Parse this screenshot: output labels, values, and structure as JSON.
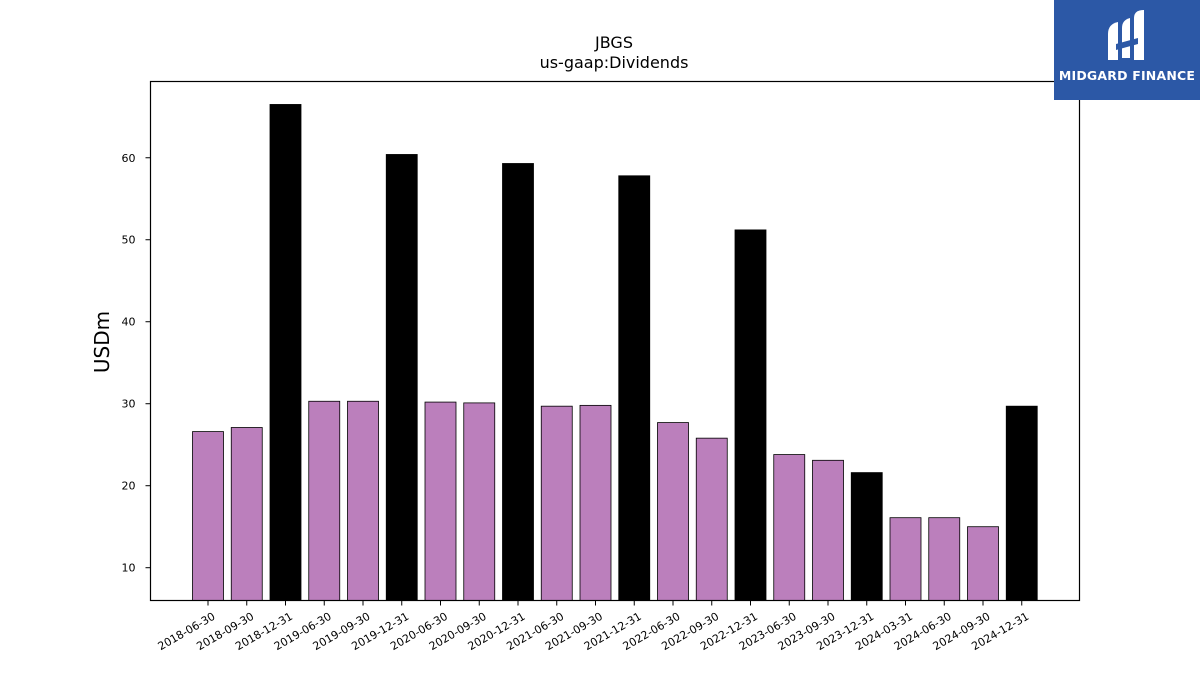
{
  "brand": {
    "name": "MIDGARD FINANCE",
    "background": "#2c58a6",
    "icon": "midgard-finance-logo-icon"
  },
  "chart_data": {
    "type": "bar",
    "title": "JBGS",
    "subtitle": "us-gaap:Dividends",
    "ylabel": "USDm",
    "xlabel": "",
    "ylim": [
      6,
      69.3
    ],
    "yticks": [
      10,
      20,
      30,
      40,
      50,
      60
    ],
    "grid": false,
    "categories": [
      "2018-06-30",
      "2018-09-30",
      "2018-12-31",
      "2019-06-30",
      "2019-09-30",
      "2019-12-31",
      "2020-06-30",
      "2020-09-30",
      "2020-12-31",
      "2021-06-30",
      "2021-09-30",
      "2021-12-31",
      "2022-06-30",
      "2022-09-30",
      "2022-12-31",
      "2023-06-30",
      "2023-09-30",
      "2023-12-31",
      "2024-03-31",
      "2024-06-30",
      "2024-09-30",
      "2024-12-31"
    ],
    "values": [
      26.6,
      27.1,
      66.5,
      30.3,
      30.3,
      60.4,
      30.2,
      30.1,
      59.3,
      29.7,
      29.8,
      57.8,
      27.7,
      25.8,
      51.2,
      23.8,
      23.1,
      21.6,
      16.1,
      16.1,
      15.0,
      29.7
    ],
    "is_annual": [
      false,
      false,
      true,
      false,
      false,
      true,
      false,
      false,
      true,
      false,
      false,
      true,
      false,
      false,
      true,
      false,
      false,
      true,
      false,
      false,
      false,
      true
    ],
    "colors": {
      "quarterly": "#bb7fbc",
      "annual": "#000000",
      "edge": "#000000"
    }
  }
}
